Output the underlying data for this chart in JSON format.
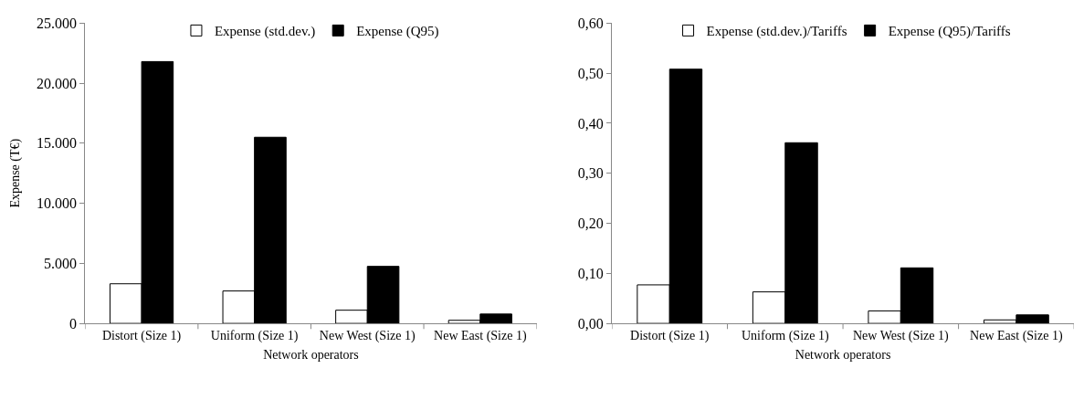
{
  "chart_data": [
    {
      "type": "bar",
      "xlabel": "Network operators",
      "ylabel": "Expense (T€)",
      "categories": [
        "Distort (Size 1)",
        "Uniform (Size 1)",
        "New West (Size 1)",
        "New East (Size 1)"
      ],
      "series": [
        {
          "name": "Expense (std.dev.)",
          "color": "#ffffff",
          "values": [
            3300,
            2700,
            1100,
            260
          ]
        },
        {
          "name": "Expense (Q95)",
          "color": "#000000",
          "values": [
            21800,
            15500,
            4750,
            780
          ]
        }
      ],
      "ylim": [
        0,
        25000
      ],
      "yticks": [
        0,
        {
          "value": 5000,
          "label": "5.000"
        },
        {
          "value": 10000,
          "label": "10.000"
        },
        {
          "value": 15000,
          "label": "15.000"
        },
        {
          "value": 20000,
          "label": "20.000"
        },
        {
          "value": 25000,
          "label": "25.000"
        }
      ],
      "grid": false,
      "legend": "top"
    },
    {
      "type": "bar",
      "xlabel": "Network operators",
      "categories": [
        "Distort (Size 1)",
        "Uniform (Size 1)",
        "New West (Size 1)",
        "New East (Size 1)"
      ],
      "series": [
        {
          "name": "Expense (std.dev.)/Tariffs",
          "color": "#ffffff",
          "values": [
            0.077,
            0.063,
            0.025,
            0.007
          ]
        },
        {
          "name": "Expense (Q95)/Tariffs",
          "color": "#000000",
          "values": [
            0.508,
            0.361,
            0.111,
            0.017
          ]
        }
      ],
      "ylim": [
        0,
        0.6
      ],
      "yticks": [
        {
          "value": 0,
          "label": "0,00"
        },
        {
          "value": 0.1,
          "label": "0,10"
        },
        {
          "value": 0.2,
          "label": "0,20"
        },
        {
          "value": 0.3,
          "label": "0,30"
        },
        {
          "value": 0.4,
          "label": "0,40"
        },
        {
          "value": 0.5,
          "label": "0,50"
        },
        {
          "value": 0.6,
          "label": "0,60"
        }
      ],
      "grid": false,
      "legend": "top"
    }
  ]
}
